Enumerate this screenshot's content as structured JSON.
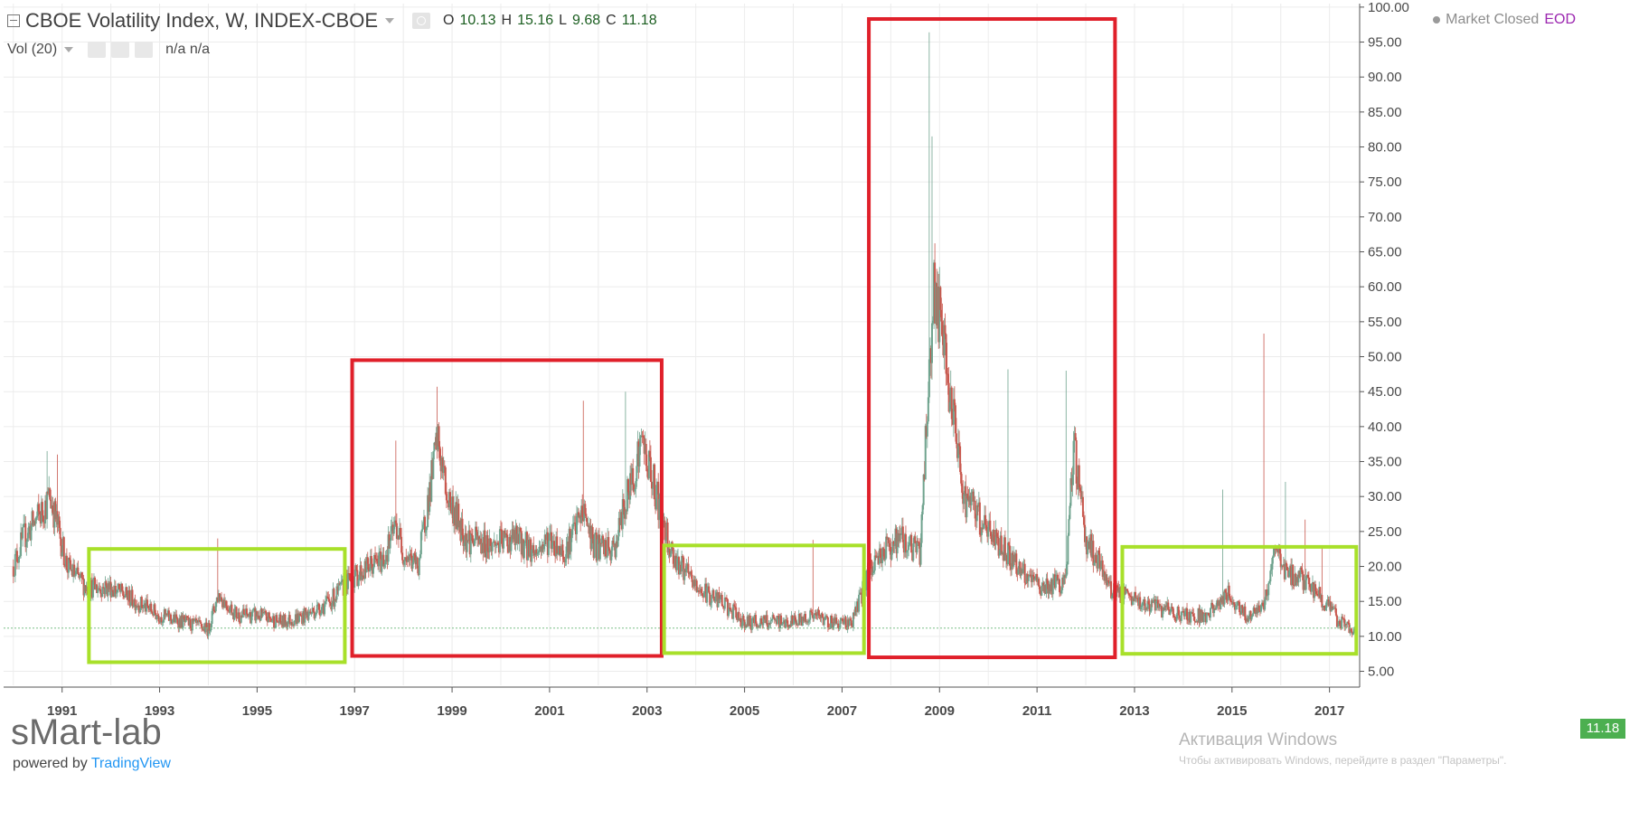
{
  "header": {
    "title": "CBOE Volatility Index, W, INDEX-CBOE",
    "ohlc": [
      {
        "key": "O",
        "value": "10.13"
      },
      {
        "key": "H",
        "value": "15.16"
      },
      {
        "key": "L",
        "value": "9.68"
      },
      {
        "key": "C",
        "value": "11.18"
      }
    ],
    "volume_label": "Vol (20)",
    "volume_values": "n/a n/a",
    "market_status": "Market Closed",
    "data_type": "EOD"
  },
  "watermark": {
    "brand": "sMart-lab",
    "powered_prefix": "powered by",
    "powered_brand": "TradingView"
  },
  "windows_overlay": {
    "title": "Активация Windows",
    "subtitle": "Чтобы активировать Windows, перейдите в раздел \"Параметры\"."
  },
  "last_price_label": "11.18",
  "colors": {
    "up": "#6fa38e",
    "down": "#c8584e",
    "calm_box": "#a8e02a",
    "crisis_box": "#e0202a",
    "last_price": "#4caf50",
    "grid": "#ececec"
  },
  "chart_data": {
    "type": "candlestick",
    "title": "CBOE Volatility Index, W, INDEX-CBOE",
    "x_ticks": [
      "1991",
      "1993",
      "1995",
      "1997",
      "1999",
      "2001",
      "2003",
      "2005",
      "2007",
      "2009",
      "2011",
      "2013",
      "2015",
      "2017"
    ],
    "y_ticks": [
      "5.00",
      "10.00",
      "15.00",
      "20.00",
      "25.00",
      "30.00",
      "35.00",
      "40.00",
      "45.00",
      "50.00",
      "55.00",
      "60.00",
      "65.00",
      "70.00",
      "75.00",
      "80.00",
      "85.00",
      "90.00",
      "95.00",
      "100.00"
    ],
    "xlim": [
      1989.8,
      2017.6
    ],
    "ylim": [
      3.0,
      100.5
    ],
    "grid": true,
    "last_close": 11.18,
    "series_profile": {
      "x": [
        1990.0,
        1990.2,
        1990.6,
        1990.75,
        1990.9,
        1991.1,
        1991.5,
        1992.0,
        1992.5,
        1993.0,
        1993.5,
        1994.0,
        1994.2,
        1994.6,
        1995.0,
        1995.5,
        1996.0,
        1996.5,
        1996.9,
        1997.3,
        1997.6,
        1997.85,
        1998.0,
        1998.3,
        1998.7,
        1998.9,
        1999.3,
        1999.8,
        2000.3,
        2000.7,
        2001.0,
        2001.3,
        2001.7,
        2001.9,
        2002.3,
        2002.6,
        2002.9,
        2003.2,
        2003.5,
        2004.0,
        2004.5,
        2005.0,
        2005.5,
        2006.0,
        2006.4,
        2006.8,
        2007.2,
        2007.6,
        2007.8,
        2008.2,
        2008.6,
        2008.8,
        2008.9,
        2009.2,
        2009.5,
        2010.0,
        2010.4,
        2010.8,
        2011.2,
        2011.6,
        2011.75,
        2012.0,
        2012.5,
        2013.0,
        2013.5,
        2014.0,
        2014.5,
        2014.9,
        2015.3,
        2015.65,
        2015.9,
        2016.1,
        2016.5,
        2016.9,
        2017.2,
        2017.5
      ],
      "y": [
        20,
        24,
        28,
        30,
        26,
        20,
        17,
        17,
        15,
        13,
        12,
        11,
        16,
        13,
        13,
        12,
        13,
        15,
        18,
        20,
        21,
        26,
        22,
        20,
        38,
        30,
        24,
        23,
        24,
        22,
        24,
        22,
        28,
        23,
        22,
        30,
        38,
        30,
        22,
        17,
        15,
        12,
        12,
        12,
        13,
        12,
        12,
        20,
        22,
        24,
        22,
        50,
        60,
        45,
        30,
        25,
        22,
        18,
        17,
        18,
        38,
        24,
        17,
        15,
        14,
        13,
        13,
        16,
        13,
        14,
        23,
        19,
        18,
        15,
        12,
        11
      ]
    },
    "spike_highs": [
      {
        "x": 1990.7,
        "high": 36.5
      },
      {
        "x": 1990.9,
        "high": 36.0
      },
      {
        "x": 1994.2,
        "high": 24.0
      },
      {
        "x": 1997.85,
        "high": 38.0
      },
      {
        "x": 1998.7,
        "high": 45.7
      },
      {
        "x": 2001.7,
        "high": 43.7
      },
      {
        "x": 2002.55,
        "high": 45.0
      },
      {
        "x": 2006.4,
        "high": 23.8
      },
      {
        "x": 2008.78,
        "high": 96.4
      },
      {
        "x": 2008.85,
        "high": 81.5
      },
      {
        "x": 2009.15,
        "high": 52.0
      },
      {
        "x": 2010.4,
        "high": 48.2
      },
      {
        "x": 2011.6,
        "high": 48.0
      },
      {
        "x": 2014.8,
        "high": 31.0
      },
      {
        "x": 2015.65,
        "high": 53.3
      },
      {
        "x": 2016.1,
        "high": 32.1
      },
      {
        "x": 2016.5,
        "high": 26.7
      },
      {
        "x": 2016.85,
        "high": 22.8
      }
    ],
    "highlight_boxes": [
      {
        "kind": "calm",
        "x0": 1991.55,
        "x1": 1996.8,
        "y0": 6.3,
        "y1": 22.5
      },
      {
        "kind": "crisis",
        "x0": 1996.95,
        "x1": 2003.3,
        "y0": 7.2,
        "y1": 49.5
      },
      {
        "kind": "calm",
        "x0": 2003.35,
        "x1": 2007.45,
        "y0": 7.6,
        "y1": 23.0
      },
      {
        "kind": "crisis",
        "x0": 2007.55,
        "x1": 2012.6,
        "y0": 7.0,
        "y1": 98.3
      },
      {
        "kind": "calm",
        "x0": 2012.75,
        "x1": 2017.55,
        "y0": 7.5,
        "y1": 22.8
      }
    ]
  }
}
